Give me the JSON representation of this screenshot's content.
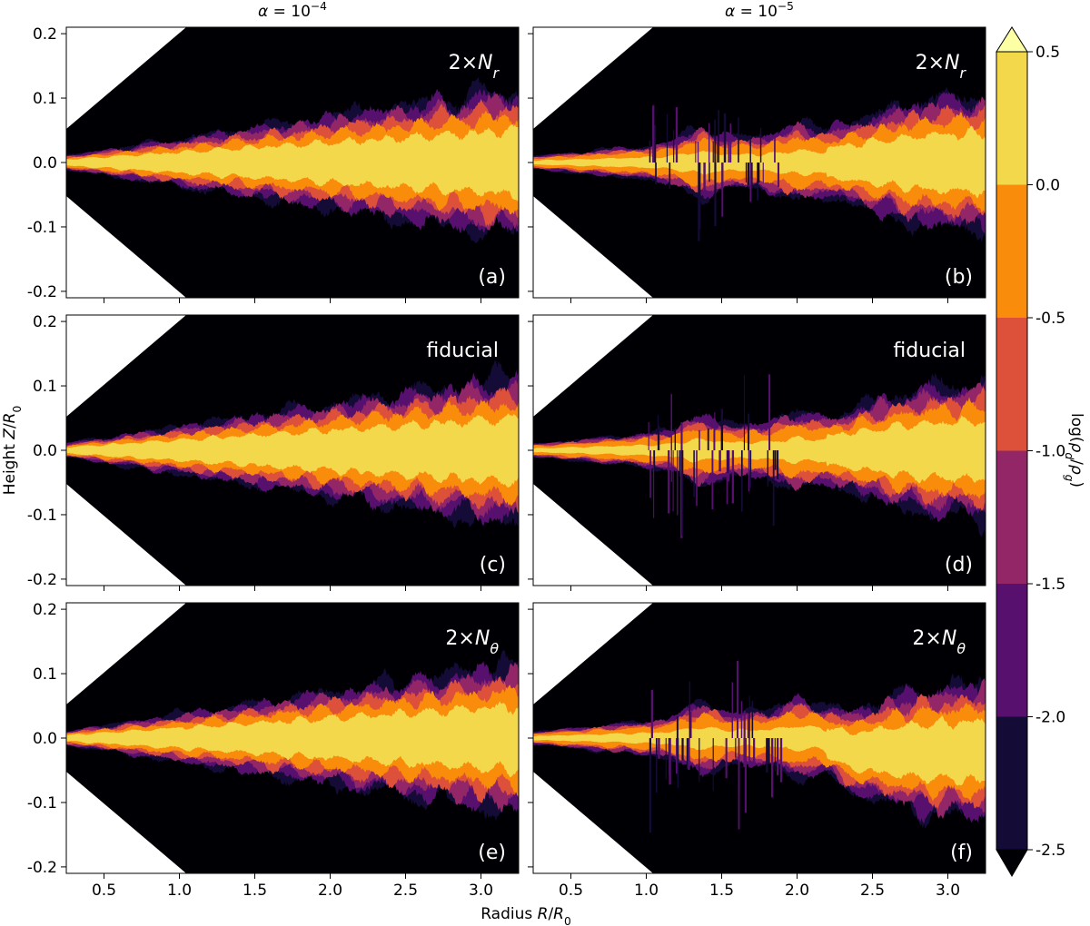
{
  "chart_data": [
    {
      "type": "contour",
      "title": [
        {
          "text": "α",
          "italic": true
        },
        {
          "text": " = 10"
        },
        {
          "text": "−4",
          "sup": true
        }
      ],
      "label": [
        {
          "text": "2×"
        },
        {
          "text": "N",
          "italic": true
        },
        {
          "text": "r",
          "sub": true,
          "italic": true
        }
      ],
      "panel": "(a)",
      "xlim": [
        0.25,
        3.25
      ],
      "ylim": [
        -0.21,
        0.21
      ],
      "xticks": [
        0.5,
        {
          "value": 1,
          "label": "1.0"
        },
        1.5,
        {
          "value": 2,
          "label": "2.0"
        },
        2.5,
        {
          "value": 3,
          "label": "3.0"
        }
      ],
      "yticks": [
        -0.2,
        -0.1,
        {
          "value": 0,
          "label": "0.0"
        },
        0.1,
        0.2
      ]
    },
    {
      "type": "contour",
      "title": [
        {
          "text": "α",
          "italic": true
        },
        {
          "text": " = 10"
        },
        {
          "text": "−5",
          "sup": true
        }
      ],
      "label": [
        {
          "text": "2×"
        },
        {
          "text": "N",
          "italic": true
        },
        {
          "text": "r",
          "sub": true,
          "italic": true
        }
      ],
      "panel": "(b)",
      "xlim": [
        0.25,
        3.25
      ],
      "ylim": [
        -0.21,
        0.21
      ],
      "xticks": [
        0.5,
        {
          "value": 1,
          "label": "1.0"
        },
        1.5,
        {
          "value": 2,
          "label": "2.0"
        },
        2.5,
        {
          "value": 3,
          "label": "3.0"
        }
      ],
      "yticks": [
        -0.2,
        -0.1,
        {
          "value": 0,
          "label": "0.0"
        },
        0.1,
        0.2
      ]
    },
    {
      "type": "contour",
      "label": [
        {
          "text": "fiducial"
        }
      ],
      "panel": "(c)",
      "xlim": [
        0.25,
        3.25
      ],
      "ylim": [
        -0.21,
        0.21
      ],
      "xticks": [
        0.5,
        {
          "value": 1,
          "label": "1.0"
        },
        1.5,
        {
          "value": 2,
          "label": "2.0"
        },
        2.5,
        {
          "value": 3,
          "label": "3.0"
        }
      ],
      "yticks": [
        -0.2,
        -0.1,
        {
          "value": 0,
          "label": "0.0"
        },
        0.1,
        0.2
      ]
    },
    {
      "type": "contour",
      "label": [
        {
          "text": "fiducial"
        }
      ],
      "panel": "(d)",
      "xlim": [
        0.25,
        3.25
      ],
      "ylim": [
        -0.21,
        0.21
      ],
      "xticks": [
        0.5,
        {
          "value": 1,
          "label": "1.0"
        },
        1.5,
        {
          "value": 2,
          "label": "2.0"
        },
        2.5,
        {
          "value": 3,
          "label": "3.0"
        }
      ],
      "yticks": [
        -0.2,
        -0.1,
        {
          "value": 0,
          "label": "0.0"
        },
        0.1,
        0.2
      ]
    },
    {
      "type": "contour",
      "label": [
        {
          "text": "2×"
        },
        {
          "text": "N",
          "italic": true
        },
        {
          "text": "θ",
          "sub": true,
          "italic": true
        }
      ],
      "panel": "(e)",
      "xlim": [
        0.25,
        3.25
      ],
      "ylim": [
        -0.21,
        0.21
      ],
      "xticks": [
        0.5,
        {
          "value": 1,
          "label": "1.0"
        },
        1.5,
        {
          "value": 2,
          "label": "2.0"
        },
        2.5,
        {
          "value": 3,
          "label": "3.0"
        }
      ],
      "yticks": [
        -0.2,
        -0.1,
        {
          "value": 0,
          "label": "0.0"
        },
        0.1,
        0.2
      ]
    },
    {
      "type": "contour",
      "label": [
        {
          "text": "2×"
        },
        {
          "text": "N",
          "italic": true
        },
        {
          "text": "θ",
          "sub": true,
          "italic": true
        }
      ],
      "panel": "(f)",
      "xlim": [
        0.25,
        3.25
      ],
      "ylim": [
        -0.21,
        0.21
      ],
      "xticks": [
        0.5,
        {
          "value": 1,
          "label": "1.0"
        },
        1.5,
        {
          "value": 2,
          "label": "2.0"
        },
        2.5,
        {
          "value": 3,
          "label": "3.0"
        }
      ],
      "yticks": [
        -0.2,
        -0.1,
        {
          "value": 0,
          "label": "0.0"
        },
        0.1,
        0.2
      ]
    }
  ],
  "figure": {
    "xlabel": [
      {
        "text": "Radius "
      },
      {
        "text": "R",
        "italic": true
      },
      {
        "text": "/"
      },
      {
        "text": "R",
        "italic": true
      },
      {
        "text": "0",
        "sub": true
      }
    ],
    "ylabel": [
      {
        "text": "Height "
      },
      {
        "text": "Z",
        "italic": true
      },
      {
        "text": "/"
      },
      {
        "text": "R",
        "italic": true
      },
      {
        "text": "0",
        "sub": true
      }
    ],
    "colorbar": {
      "label": [
        {
          "text": "log("
        },
        {
          "text": "ρ",
          "italic": true
        },
        {
          "text": "d",
          "sub": true,
          "italic": true
        },
        {
          "text": "/"
        },
        {
          "text": "ρ",
          "italic": true
        },
        {
          "text": "g",
          "sub": true,
          "italic": true
        },
        {
          "text": ")"
        }
      ],
      "lim": [
        -2.5,
        0.5
      ],
      "ticks": [
        0.5,
        {
          "value": 0,
          "label": "0.0"
        },
        -0.5,
        {
          "value": -1,
          "label": "-1.0"
        },
        -1.5,
        {
          "value": -2,
          "label": "-2.0"
        },
        -2.5
      ],
      "extend": "both",
      "colors": [
        "#000004",
        "#150b37",
        "#57106e",
        "#932667",
        "#dd513a",
        "#f98c0a",
        "#f3d84b",
        "#fcffa4"
      ]
    }
  }
}
